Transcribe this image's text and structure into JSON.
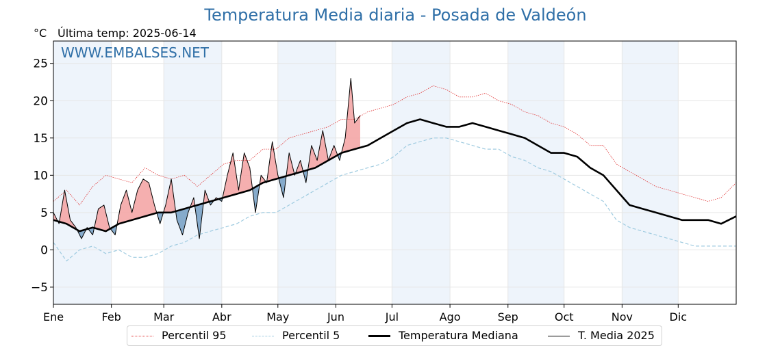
{
  "title": "Temperatura Media diaria - Posada de Valdeón",
  "unit": "°C",
  "last_update": "Última temp: 2025-06-14",
  "watermark": "WWW.EMBALSES.NET",
  "colors": {
    "title": "#2f6fa7",
    "p95": "#e03030",
    "p5": "#9fcbe0",
    "median": "#000000",
    "current": "#000000",
    "above_fill": "#f4a6a6",
    "below_fill": "#7aa3c7",
    "month_band": "#eef4fb"
  },
  "legend": [
    {
      "key": "p95",
      "label": "Percentil 95"
    },
    {
      "key": "p5",
      "label": "Percentil 5"
    },
    {
      "key": "median",
      "label": "Temperatura Mediana"
    },
    {
      "key": "current",
      "label": "T. Media 2025"
    }
  ],
  "chart_data": {
    "type": "line",
    "title": "Temperatura Media diaria - Posada de Valdeón",
    "ylabel": "°C",
    "ylim": [
      -7.3,
      28
    ],
    "yticks": [
      -5,
      0,
      5,
      10,
      15,
      20,
      25
    ],
    "xlim": [
      1,
      366
    ],
    "grid": true,
    "legend_position": "bottom",
    "month_ticks": [
      {
        "label": "Ene",
        "day": 1
      },
      {
        "label": "Feb",
        "day": 32
      },
      {
        "label": "Mar",
        "day": 60
      },
      {
        "label": "Abr",
        "day": 91
      },
      {
        "label": "May",
        "day": 121
      },
      {
        "label": "Jun",
        "day": 152
      },
      {
        "label": "Jul",
        "day": 182
      },
      {
        "label": "Ago",
        "day": 213
      },
      {
        "label": "Sep",
        "day": 244
      },
      {
        "label": "Oct",
        "day": 274
      },
      {
        "label": "Nov",
        "day": 305
      },
      {
        "label": "Dic",
        "day": 335
      }
    ],
    "series": [
      {
        "name": "Percentil 95",
        "key": "p95",
        "style": "dotted",
        "x": [
          1,
          8,
          15,
          22,
          29,
          36,
          43,
          50,
          57,
          64,
          71,
          78,
          85,
          92,
          99,
          106,
          113,
          120,
          127,
          134,
          141,
          148,
          155,
          162,
          169,
          176,
          183,
          190,
          197,
          204,
          211,
          218,
          225,
          232,
          239,
          246,
          253,
          260,
          267,
          274,
          281,
          288,
          295,
          302,
          309,
          316,
          323,
          330,
          337,
          344,
          351,
          358,
          366
        ],
        "values": [
          6.5,
          8,
          6,
          8.5,
          10,
          9.5,
          9,
          11,
          10,
          9.5,
          10,
          8.5,
          10,
          11.5,
          12,
          12,
          13.5,
          13.5,
          15,
          15.5,
          16,
          16.5,
          17.5,
          17.5,
          18.5,
          19,
          19.5,
          20.5,
          21,
          22,
          21.5,
          20.5,
          20.5,
          21,
          20,
          19.5,
          18.5,
          18,
          17,
          16.5,
          15.5,
          14,
          14,
          11.5,
          10.5,
          9.5,
          8.5,
          8,
          7.5,
          7,
          6.5,
          7,
          9
        ]
      },
      {
        "name": "Percentil 5",
        "key": "p5",
        "style": "dashed",
        "x": [
          1,
          8,
          15,
          22,
          29,
          36,
          43,
          50,
          57,
          64,
          71,
          78,
          85,
          92,
          99,
          106,
          113,
          120,
          127,
          134,
          141,
          148,
          155,
          162,
          169,
          176,
          183,
          190,
          197,
          204,
          211,
          218,
          225,
          232,
          239,
          246,
          253,
          260,
          267,
          274,
          281,
          288,
          295,
          302,
          309,
          316,
          323,
          330,
          337,
          344,
          351,
          358,
          366
        ],
        "values": [
          1,
          -1.5,
          0,
          0.5,
          -0.5,
          0,
          -1,
          -1,
          -0.5,
          0.5,
          1,
          2,
          2.5,
          3,
          3.5,
          4.5,
          5,
          5,
          6,
          7,
          8,
          9,
          10,
          10.5,
          11,
          11.5,
          12.5,
          14,
          14.5,
          15,
          15,
          14.5,
          14,
          13.5,
          13.5,
          12.5,
          12,
          11,
          10.5,
          9.5,
          8.5,
          7.5,
          6.5,
          4,
          3,
          2.5,
          2,
          1.5,
          1,
          0.5,
          0.5,
          0.5,
          0.5
        ]
      },
      {
        "name": "Temperatura Mediana",
        "key": "median",
        "style": "solid-thick",
        "x": [
          1,
          8,
          15,
          22,
          29,
          36,
          43,
          50,
          57,
          64,
          71,
          78,
          85,
          92,
          99,
          106,
          113,
          120,
          127,
          134,
          141,
          148,
          155,
          162,
          169,
          176,
          183,
          190,
          197,
          204,
          211,
          218,
          225,
          232,
          239,
          246,
          253,
          260,
          267,
          274,
          281,
          288,
          295,
          302,
          309,
          316,
          323,
          330,
          337,
          344,
          351,
          358,
          366
        ],
        "values": [
          4,
          3.5,
          2.5,
          3,
          2.5,
          3.5,
          4,
          4.5,
          5,
          5,
          5.5,
          6,
          6.5,
          7,
          7.5,
          8,
          9,
          9.5,
          10,
          10.5,
          11,
          12,
          13,
          13.5,
          14,
          15,
          16,
          17,
          17.5,
          17,
          16.5,
          16.5,
          17,
          16.5,
          16,
          15.5,
          15,
          14,
          13,
          13,
          12.5,
          11,
          10,
          8,
          6,
          5.5,
          5,
          4.5,
          4,
          4,
          4,
          3.5,
          4.5
        ]
      },
      {
        "name": "T. Media 2025",
        "key": "current",
        "style": "solid-thin",
        "x": [
          1,
          4,
          7,
          10,
          13,
          16,
          19,
          22,
          25,
          28,
          31,
          34,
          37,
          40,
          43,
          46,
          49,
          52,
          55,
          58,
          61,
          64,
          67,
          70,
          73,
          76,
          79,
          82,
          85,
          88,
          91,
          94,
          97,
          100,
          103,
          106,
          109,
          112,
          115,
          118,
          121,
          124,
          127,
          130,
          133,
          136,
          139,
          142,
          145,
          148,
          151,
          154,
          157,
          160,
          162,
          165
        ],
        "values": [
          5,
          3.5,
          8,
          4,
          3,
          1.5,
          3,
          2,
          5.5,
          6,
          3,
          2,
          6,
          8,
          5,
          8,
          9.5,
          9,
          6,
          3.5,
          6,
          9.5,
          4,
          2,
          5,
          7,
          1.5,
          8,
          6,
          7,
          6.5,
          10,
          13,
          8,
          13,
          11,
          5,
          10,
          9,
          14.5,
          10,
          7,
          13,
          10,
          12,
          9,
          14,
          12,
          16,
          12,
          14,
          12,
          15,
          23,
          17,
          18
        ]
      }
    ]
  }
}
